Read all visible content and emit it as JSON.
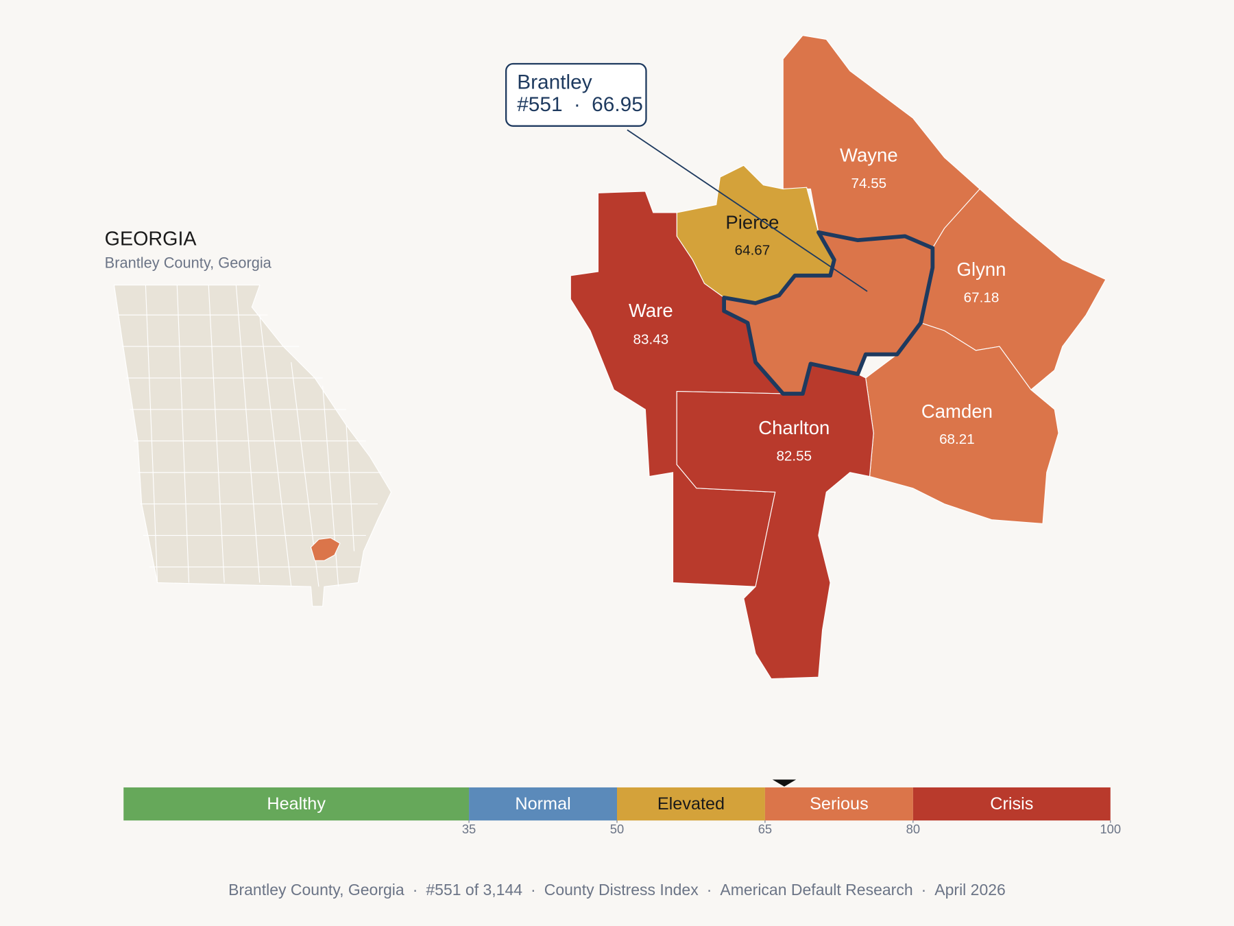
{
  "inset": {
    "title": "GEORGIA",
    "subtitle": "Brantley County, Georgia",
    "fill": "#e8e3d8",
    "highlight": "#db754a"
  },
  "callout": {
    "name": "Brantley",
    "rank": "#551",
    "score": 66.95,
    "separator": "·",
    "outline": "#1e3a5f"
  },
  "counties": [
    {
      "name": "Wayne",
      "value": 74.55
    },
    {
      "name": "Pierce",
      "value": 64.67
    },
    {
      "name": "Glynn",
      "value": 67.18
    },
    {
      "name": "Ware",
      "value": 83.43
    },
    {
      "name": "Camden",
      "value": 68.21
    },
    {
      "name": "Charlton",
      "value": 82.55
    }
  ],
  "legend": {
    "scale": [
      0,
      100
    ],
    "bands": [
      {
        "label": "Healthy",
        "from": 0,
        "to": 35,
        "color": "#66a85a",
        "text_color": "#ffffff"
      },
      {
        "label": "Normal",
        "from": 35,
        "to": 50,
        "color": "#5b8aba",
        "text_color": "#ffffff"
      },
      {
        "label": "Elevated",
        "from": 50,
        "to": 65,
        "color": "#d4a23a",
        "text_color": "#1a1a1a"
      },
      {
        "label": "Serious",
        "from": 65,
        "to": 80,
        "color": "#db754a",
        "text_color": "#ffffff"
      },
      {
        "label": "Crisis",
        "from": 80,
        "to": 100,
        "color": "#b93a2c",
        "text_color": "#ffffff"
      }
    ],
    "ticks": [
      35,
      50,
      65,
      80,
      100
    ]
  },
  "footer": {
    "separator": "·",
    "items": [
      "Brantley County, Georgia",
      "#551 of 3,144",
      "County Distress Index",
      "American Default Research",
      "April 2026"
    ]
  }
}
